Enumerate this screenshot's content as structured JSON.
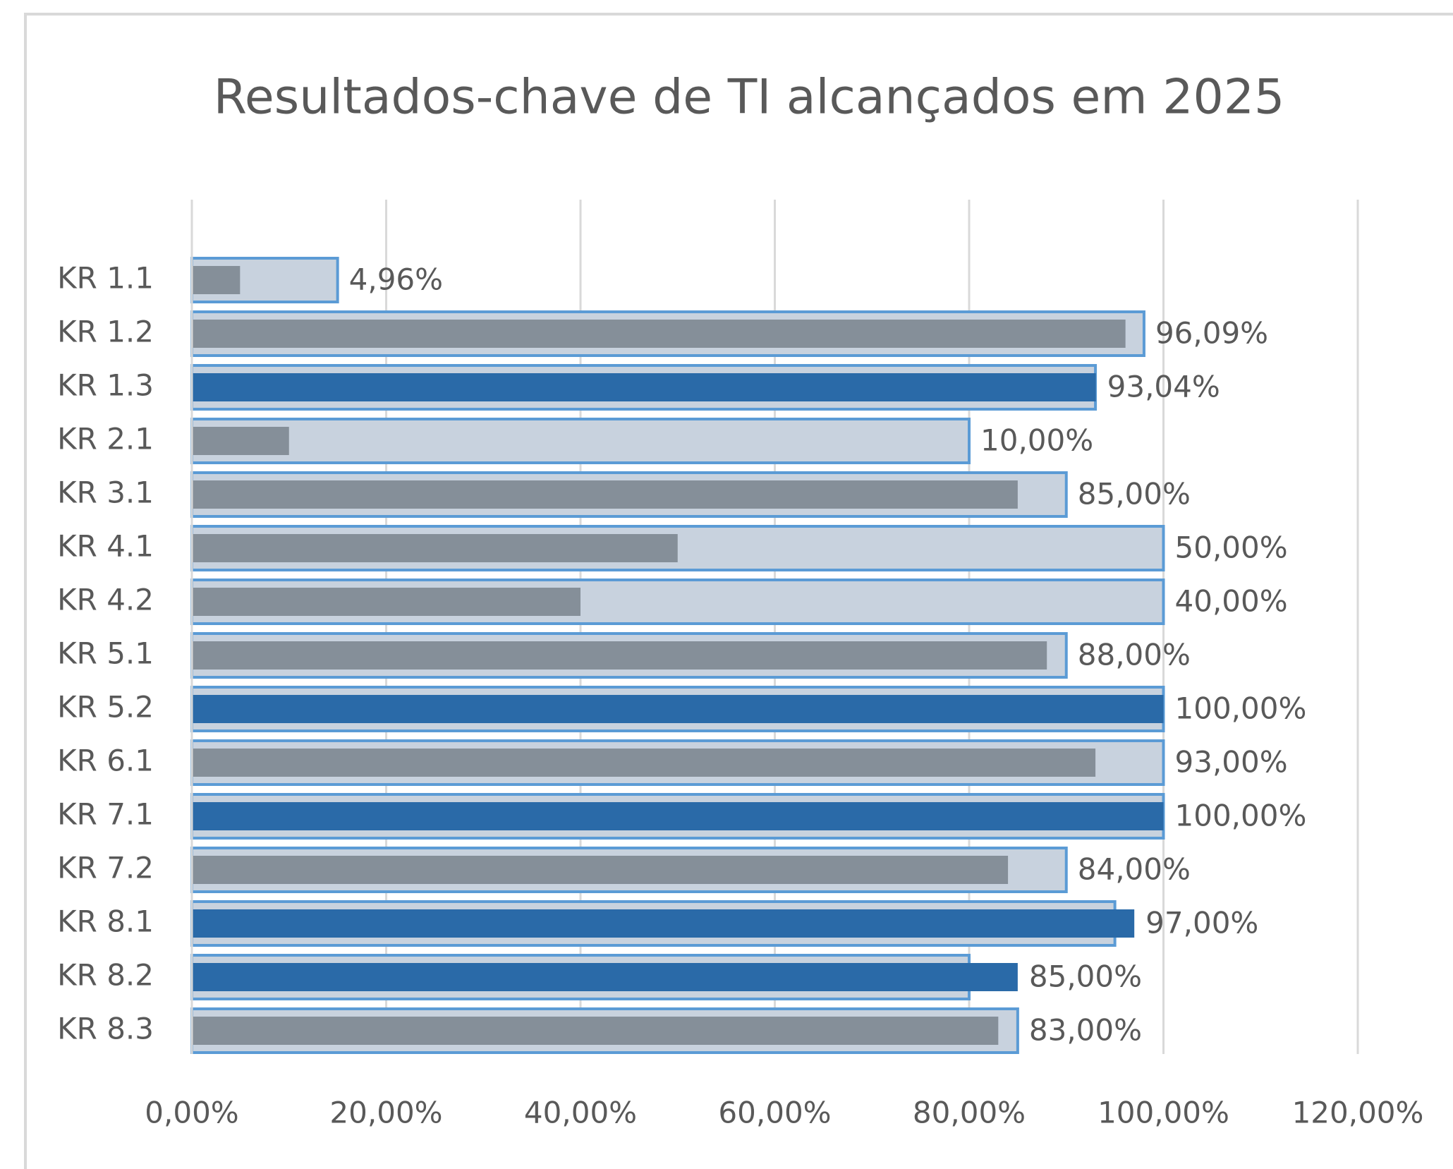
{
  "chart_data": {
    "type": "bullet-bar",
    "title": "Resultados-chave de TI alcançados em 2025",
    "categories": [
      "KR 1.1",
      "KR 1.2",
      "KR 1.3",
      "KR 2.1",
      "KR 3.1",
      "KR 4.1",
      "KR 4.2",
      "KR 5.1",
      "KR 5.2",
      "KR 6.1",
      "KR 7.1",
      "KR 7.2",
      "KR 8.1",
      "KR 8.2",
      "KR 8.3"
    ],
    "series": [
      {
        "color": "#c8d2de",
        "edge_color": "#5b9bd5",
        "values": [
          15,
          98,
          93,
          80,
          90,
          100,
          100,
          90,
          100,
          100,
          100,
          90,
          95,
          80,
          85
        ]
      },
      {
        "colors": [
          "#858f99",
          "#858f99",
          "#2a6aa8",
          "#858f99",
          "#858f99",
          "#858f99",
          "#858f99",
          "#858f99",
          "#2a6aa8",
          "#858f99",
          "#2a6aa8",
          "#858f99",
          "#2a6aa8",
          "#2a6aa8",
          "#858f99"
        ],
        "values": [
          4.96,
          96.09,
          93.04,
          10,
          85,
          50,
          40,
          88,
          100,
          93,
          100,
          84,
          97,
          85,
          83
        ],
        "value_labels": [
          "4,96%",
          "96,09%",
          "93,04%",
          "10,00%",
          "85,00%",
          "50,00%",
          "40,00%",
          "88,00%",
          "100,00%",
          "93,00%",
          "100,00%",
          "84,00%",
          "97,00%",
          "85,00%",
          "83,00%"
        ]
      }
    ],
    "xlim": [
      0,
      120
    ],
    "xticks": [
      {
        "value": 0,
        "label": "0,00%"
      },
      {
        "value": 20,
        "label": "20,00%"
      },
      {
        "value": 40,
        "label": "40,00%"
      },
      {
        "value": 60,
        "label": "60,00%"
      },
      {
        "value": 80,
        "label": "80,00%"
      },
      {
        "value": 100,
        "label": "100,00%"
      },
      {
        "value": 120,
        "label": "120,00%"
      }
    ],
    "grid": true
  }
}
